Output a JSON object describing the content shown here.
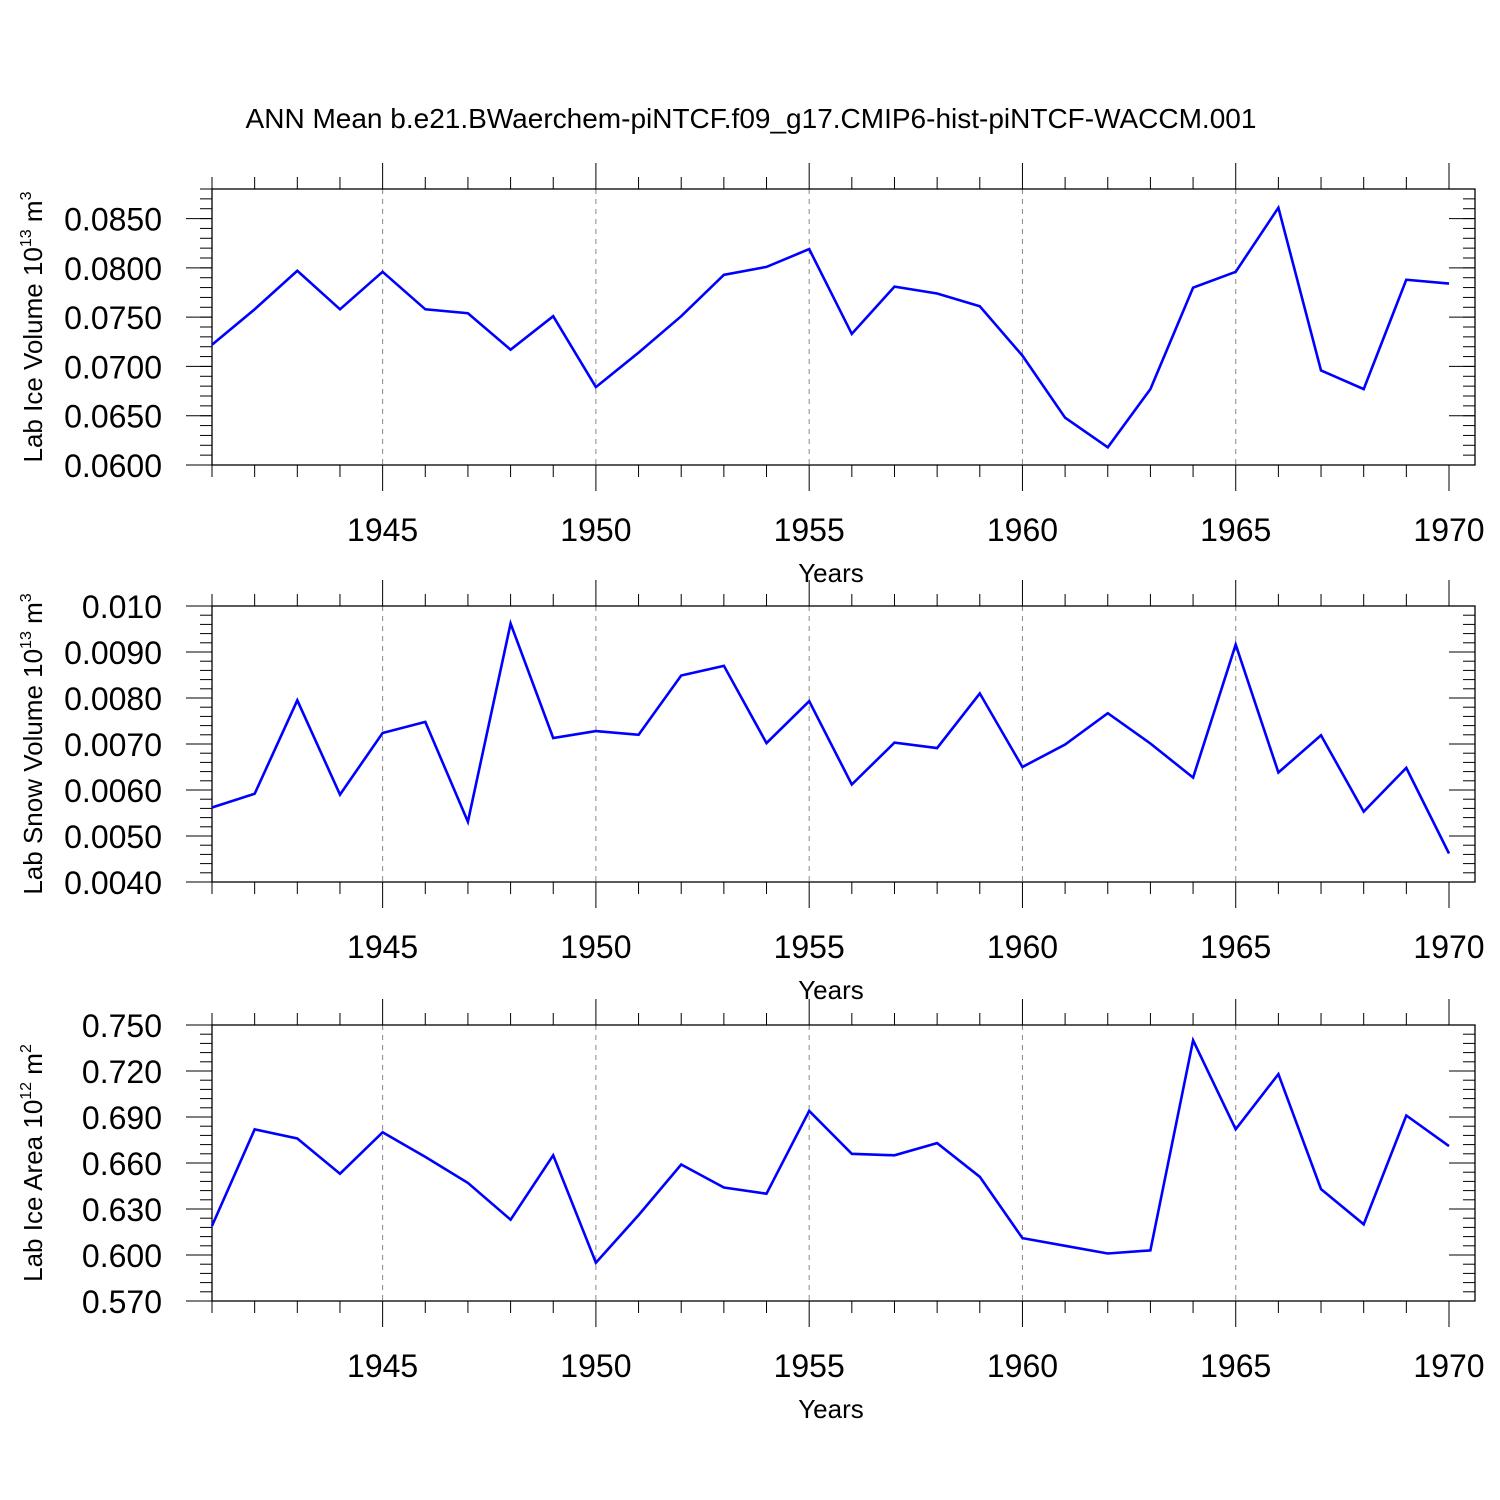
{
  "title": "ANN Mean b.e21.BWaerchem-piNTCF.f09_g17.CMIP6-hist-piNTCF-WACCM.001",
  "colors": {
    "line": "#0000ff",
    "axis": "#000000",
    "grid": "#888888"
  },
  "chart_data": [
    {
      "type": "line",
      "xlabel": "Years",
      "ylabel": {
        "text": "Lab Ice Volume 10",
        "exp": "13",
        "unit": " m",
        "unit_exp": "3"
      },
      "xlim": [
        1941,
        1970
      ],
      "ylim": [
        0.06,
        0.088
      ],
      "grid": "x-dashed",
      "x_ticks": [
        1945,
        1950,
        1955,
        1960,
        1965,
        1970
      ],
      "x_tick_labels": [
        "1945",
        "1950",
        "1955",
        "1960",
        "1965",
        "1970"
      ],
      "y_ticks": [
        0.06,
        0.065,
        0.07,
        0.075,
        0.08,
        0.085
      ],
      "y_tick_labels": [
        "0.0600",
        "0.0650",
        "0.0700",
        "0.0750",
        "0.0800",
        "0.0850"
      ],
      "y_minor_step": 0.001,
      "x": [
        1941,
        1942,
        1943,
        1944,
        1945,
        1946,
        1947,
        1948,
        1949,
        1950,
        1951,
        1952,
        1953,
        1954,
        1955,
        1956,
        1957,
        1958,
        1959,
        1960,
        1961,
        1962,
        1963,
        1964,
        1965,
        1966,
        1967,
        1968,
        1969,
        1970
      ],
      "series": [
        {
          "values": [
            0.0722,
            0.0758,
            0.0797,
            0.0758,
            0.0796,
            0.0758,
            0.0754,
            0.0717,
            0.0751,
            0.0679,
            0.0714,
            0.0751,
            0.0793,
            0.0801,
            0.0819,
            0.0733,
            0.0781,
            0.0774,
            0.0761,
            0.0711,
            0.0648,
            0.0618,
            0.0677,
            0.078,
            0.0796,
            0.0861,
            0.0696,
            0.0677,
            0.0788,
            0.0784
          ]
        }
      ]
    },
    {
      "type": "line",
      "xlabel": "Years",
      "ylabel": {
        "text": "Lab Snow Volume 10",
        "exp": "13",
        "unit": " m",
        "unit_exp": "3"
      },
      "xlim": [
        1941,
        1970
      ],
      "ylim": [
        0.004,
        0.01
      ],
      "grid": "x-dashed",
      "x_ticks": [
        1945,
        1950,
        1955,
        1960,
        1965,
        1970
      ],
      "x_tick_labels": [
        "1945",
        "1950",
        "1955",
        "1960",
        "1965",
        "1970"
      ],
      "y_ticks": [
        0.004,
        0.005,
        0.006,
        0.007,
        0.008,
        0.009,
        0.01
      ],
      "y_tick_labels": [
        "0.0040",
        "0.0050",
        "0.0060",
        "0.0070",
        "0.0080",
        "0.0090",
        "0.010"
      ],
      "y_minor_step": 0.0002,
      "x": [
        1941,
        1942,
        1943,
        1944,
        1945,
        1946,
        1947,
        1948,
        1949,
        1950,
        1951,
        1952,
        1953,
        1954,
        1955,
        1956,
        1957,
        1958,
        1959,
        1960,
        1961,
        1962,
        1963,
        1964,
        1965,
        1966,
        1967,
        1968,
        1969,
        1970
      ],
      "series": [
        {
          "values": [
            0.00562,
            0.00592,
            0.00795,
            0.0059,
            0.00724,
            0.00748,
            0.00531,
            0.00962,
            0.00713,
            0.00728,
            0.0072,
            0.00849,
            0.0087,
            0.00702,
            0.00793,
            0.00612,
            0.00703,
            0.00691,
            0.0081,
            0.0065,
            0.00699,
            0.00767,
            0.00701,
            0.00627,
            0.00916,
            0.00638,
            0.00719,
            0.00553,
            0.00648,
            0.00462
          ]
        }
      ]
    },
    {
      "type": "line",
      "xlabel": "Years",
      "ylabel": {
        "text": "Lab Ice Area 10",
        "exp": "12",
        "unit": " m",
        "unit_exp": "2"
      },
      "xlim": [
        1941,
        1970
      ],
      "ylim": [
        0.57,
        0.75
      ],
      "grid": "x-dashed",
      "x_ticks": [
        1945,
        1950,
        1955,
        1960,
        1965,
        1970
      ],
      "x_tick_labels": [
        "1945",
        "1950",
        "1955",
        "1960",
        "1965",
        "1970"
      ],
      "y_ticks": [
        0.57,
        0.6,
        0.63,
        0.66,
        0.69,
        0.72,
        0.75
      ],
      "y_tick_labels": [
        "0.570",
        "0.600",
        "0.630",
        "0.660",
        "0.690",
        "0.720",
        "0.750"
      ],
      "y_minor_step": 0.006,
      "x": [
        1941,
        1942,
        1943,
        1944,
        1945,
        1946,
        1947,
        1948,
        1949,
        1950,
        1951,
        1952,
        1953,
        1954,
        1955,
        1956,
        1957,
        1958,
        1959,
        1960,
        1961,
        1962,
        1963,
        1964,
        1965,
        1966,
        1967,
        1968,
        1969,
        1970
      ],
      "series": [
        {
          "values": [
            0.619,
            0.682,
            0.676,
            0.653,
            0.68,
            0.664,
            0.647,
            0.623,
            0.665,
            0.595,
            0.626,
            0.659,
            0.644,
            0.64,
            0.694,
            0.666,
            0.665,
            0.673,
            0.651,
            0.611,
            0.606,
            0.601,
            0.603,
            0.74,
            0.682,
            0.718,
            0.643,
            0.62,
            0.691,
            0.671
          ]
        }
      ]
    }
  ]
}
